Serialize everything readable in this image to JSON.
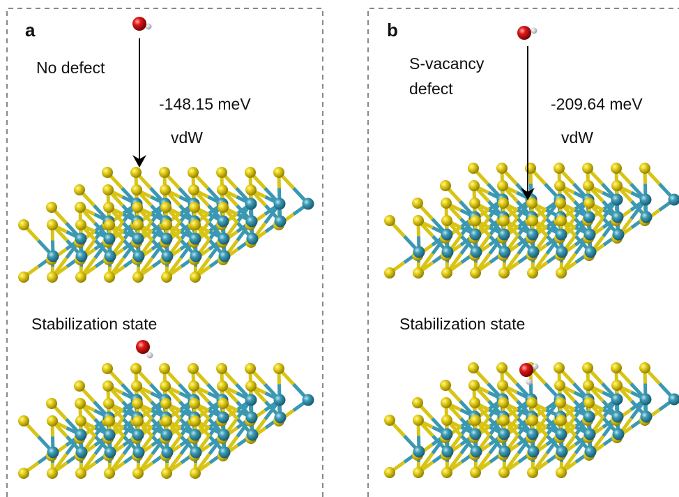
{
  "panels": [
    {
      "label": "a",
      "condition": [
        "No defect"
      ],
      "energy": "-148.15 meV",
      "interaction": "vdW",
      "state": "Stabilization state"
    },
    {
      "label": "b",
      "condition": [
        "S-vacancy",
        "defect"
      ],
      "energy": "-209.64 meV",
      "interaction": "vdW",
      "state": "Stabilization state"
    }
  ]
}
